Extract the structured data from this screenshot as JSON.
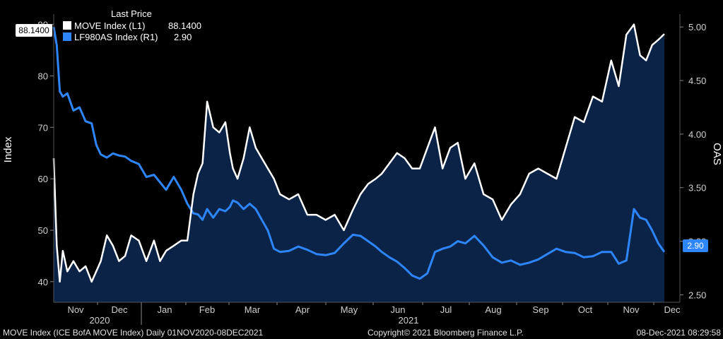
{
  "colors": {
    "background": "#000000",
    "plot_fill": "#0b2347",
    "move_line": "#ffffff",
    "oas_line": "#2e86ff",
    "tag_left_bg": "#ffffff",
    "tag_left_text": "#000000",
    "tag_right_bg": "#2e86ff",
    "tag_right_text": "#ffffff"
  },
  "legend": {
    "title": "Last Price",
    "items": [
      {
        "label": "MOVE Index  (L1)",
        "value": "88.1400",
        "color": "#ffffff"
      },
      {
        "label": "LF980AS Index  (R1)",
        "value": "2.90",
        "color": "#2e86ff"
      }
    ]
  },
  "last_value_tags": {
    "left": "88.1400",
    "right": "2.90"
  },
  "footer": {
    "left": "MOVE Index (ICE BofA MOVE Index)  Daily 01NOV2020-08DEC2021",
    "center": "Copyright© 2021 Bloomberg Finance L.P.",
    "right": "08-Dec-2021 08:29:58"
  },
  "chart_data": {
    "type": "line",
    "x_month_labels": [
      "Nov",
      "Dec",
      "Jan",
      "Feb",
      "Mar",
      "Apr",
      "May",
      "Jun",
      "Jul",
      "Aug",
      "Sep",
      "Oct",
      "Nov",
      "Dec"
    ],
    "x_year_labels": [
      "2020",
      "2021"
    ],
    "x_range": [
      "2020-11-01",
      "2021-12-08"
    ],
    "left_axis": {
      "label": "Index",
      "ticks": [
        40,
        50,
        60,
        70,
        80,
        90
      ],
      "range": [
        36,
        92
      ]
    },
    "right_axis": {
      "label": "OAS",
      "ticks": [
        "2.50",
        "3.00",
        "3.50",
        "4.00",
        "4.50",
        "5.00"
      ],
      "range": [
        2.43,
        5.12
      ]
    },
    "grid": false,
    "legend_position": "top-left",
    "series": [
      {
        "name": "MOVE Index  (L1)",
        "axis": "left",
        "x": [
          "2020-11-01",
          "2020-11-03",
          "2020-11-05",
          "2020-11-07",
          "2020-11-10",
          "2020-11-14",
          "2020-11-18",
          "2020-11-22",
          "2020-11-26",
          "2020-11-29",
          "2020-12-02",
          "2020-12-06",
          "2020-12-10",
          "2020-12-14",
          "2020-12-18",
          "2020-12-22",
          "2020-12-27",
          "2021-01-01",
          "2021-01-06",
          "2021-01-10",
          "2021-01-14",
          "2021-01-19",
          "2021-01-24",
          "2021-01-28",
          "2021-02-01",
          "2021-02-04",
          "2021-02-07",
          "2021-02-10",
          "2021-02-14",
          "2021-02-18",
          "2021-02-22",
          "2021-02-25",
          "2021-02-27",
          "2021-03-02",
          "2021-03-06",
          "2021-03-10",
          "2021-03-14",
          "2021-03-18",
          "2021-03-22",
          "2021-03-26",
          "2021-03-30",
          "2021-04-05",
          "2021-04-11",
          "2021-04-17",
          "2021-04-23",
          "2021-04-29",
          "2021-05-05",
          "2021-05-11",
          "2021-05-17",
          "2021-05-22",
          "2021-05-27",
          "2021-06-01",
          "2021-06-05",
          "2021-06-10",
          "2021-06-15",
          "2021-06-20",
          "2021-06-25",
          "2021-06-30",
          "2021-07-05",
          "2021-07-10",
          "2021-07-15",
          "2021-07-20",
          "2021-07-25",
          "2021-07-30",
          "2021-08-05",
          "2021-08-11",
          "2021-08-17",
          "2021-08-23",
          "2021-08-29",
          "2021-09-04",
          "2021-09-10",
          "2021-09-16",
          "2021-09-22",
          "2021-09-28",
          "2021-10-04",
          "2021-10-10",
          "2021-10-16",
          "2021-10-22",
          "2021-10-28",
          "2021-11-03",
          "2021-11-08",
          "2021-11-13",
          "2021-11-18",
          "2021-11-22",
          "2021-11-26",
          "2021-11-30",
          "2021-12-04",
          "2021-12-08"
        ],
        "values": [
          64,
          47,
          40,
          46,
          42,
          44,
          42,
          43,
          40,
          42,
          44,
          49,
          47,
          44,
          45,
          49,
          48,
          44,
          48,
          44,
          46,
          47,
          48,
          48,
          57,
          61,
          63,
          75,
          70,
          69,
          71,
          65,
          62,
          60,
          64,
          70,
          66,
          64,
          62,
          60,
          57,
          56,
          57,
          53,
          53,
          52,
          53,
          50,
          54,
          57,
          59,
          60,
          61,
          63,
          65,
          64,
          62,
          62,
          66,
          70,
          62,
          66,
          67,
          60,
          63,
          57,
          56,
          52,
          55,
          57,
          61,
          62,
          61,
          60,
          66,
          72,
          71,
          76,
          75,
          83,
          78,
          88,
          90,
          84,
          83,
          86,
          87,
          88.14
        ]
      },
      {
        "name": "LF980AS Index  (R1)",
        "axis": "right",
        "x": [
          "2020-11-01",
          "2020-11-03",
          "2020-11-05",
          "2020-11-07",
          "2020-11-10",
          "2020-11-14",
          "2020-11-18",
          "2020-11-22",
          "2020-11-26",
          "2020-11-29",
          "2020-12-02",
          "2020-12-06",
          "2020-12-10",
          "2020-12-14",
          "2020-12-18",
          "2020-12-22",
          "2020-12-27",
          "2021-01-01",
          "2021-01-06",
          "2021-01-10",
          "2021-01-14",
          "2021-01-19",
          "2021-01-24",
          "2021-01-28",
          "2021-02-01",
          "2021-02-04",
          "2021-02-07",
          "2021-02-10",
          "2021-02-14",
          "2021-02-18",
          "2021-02-22",
          "2021-02-25",
          "2021-02-27",
          "2021-03-02",
          "2021-03-06",
          "2021-03-10",
          "2021-03-14",
          "2021-03-18",
          "2021-03-22",
          "2021-03-26",
          "2021-03-30",
          "2021-04-05",
          "2021-04-11",
          "2021-04-17",
          "2021-04-23",
          "2021-04-29",
          "2021-05-05",
          "2021-05-11",
          "2021-05-17",
          "2021-05-22",
          "2021-05-27",
          "2021-06-01",
          "2021-06-05",
          "2021-06-10",
          "2021-06-15",
          "2021-06-20",
          "2021-06-25",
          "2021-06-30",
          "2021-07-05",
          "2021-07-10",
          "2021-07-15",
          "2021-07-20",
          "2021-07-25",
          "2021-07-30",
          "2021-08-05",
          "2021-08-11",
          "2021-08-17",
          "2021-08-23",
          "2021-08-29",
          "2021-09-04",
          "2021-09-10",
          "2021-09-16",
          "2021-09-22",
          "2021-09-28",
          "2021-10-04",
          "2021-10-10",
          "2021-10-16",
          "2021-10-22",
          "2021-10-28",
          "2021-11-03",
          "2021-11-08",
          "2021-11-13",
          "2021-11-18",
          "2021-11-22",
          "2021-11-26",
          "2021-11-30",
          "2021-12-04",
          "2021-12-08"
        ],
        "values": [
          5.0,
          4.83,
          4.4,
          4.35,
          4.38,
          4.22,
          4.25,
          4.12,
          4.1,
          3.9,
          3.81,
          3.78,
          3.82,
          3.8,
          3.79,
          3.75,
          3.72,
          3.6,
          3.62,
          3.55,
          3.48,
          3.6,
          3.48,
          3.35,
          3.26,
          3.25,
          3.2,
          3.3,
          3.22,
          3.3,
          3.28,
          3.32,
          3.38,
          3.36,
          3.3,
          3.35,
          3.3,
          3.2,
          3.1,
          2.93,
          2.9,
          2.91,
          2.95,
          2.92,
          2.88,
          2.87,
          2.89,
          2.98,
          3.06,
          3.05,
          3.0,
          2.95,
          2.9,
          2.85,
          2.81,
          2.75,
          2.68,
          2.65,
          2.7,
          2.9,
          2.93,
          2.95,
          3.0,
          2.98,
          3.05,
          2.96,
          2.85,
          2.8,
          2.82,
          2.78,
          2.8,
          2.83,
          2.88,
          2.93,
          2.9,
          2.89,
          2.85,
          2.86,
          2.9,
          2.9,
          2.79,
          2.82,
          3.3,
          3.22,
          3.2,
          3.1,
          2.98,
          2.9
        ]
      }
    ]
  }
}
